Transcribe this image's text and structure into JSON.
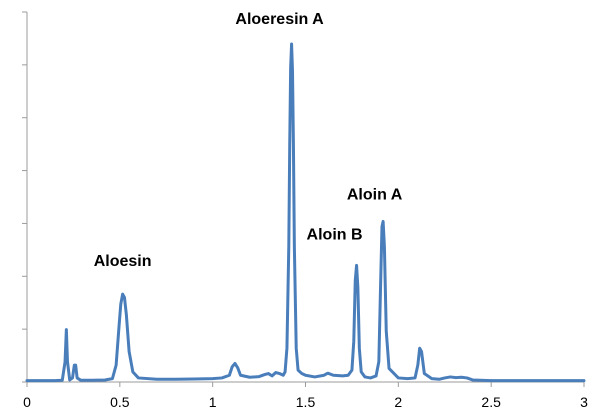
{
  "chart_data": {
    "type": "line",
    "title": "",
    "xlabel": "",
    "ylabel": "",
    "xlim": [
      0,
      3
    ],
    "ylim": [
      0,
      1
    ],
    "grid": false,
    "legend": "none",
    "line_color": "#4a7ebb",
    "x_ticks": [
      "0",
      "0.5",
      "1",
      "1.5",
      "2",
      "2.5",
      "3"
    ],
    "y_tick_count": 7,
    "peaks": [
      {
        "name": "Aloesin",
        "x": 0.515,
        "y": 0.26
      },
      {
        "name": "Aloeresin A",
        "x": 1.425,
        "y": 1.0
      },
      {
        "name": "Aloin B",
        "x": 1.775,
        "y": 0.345
      },
      {
        "name": "Aloin A",
        "x": 1.915,
        "y": 0.475
      }
    ],
    "series": [
      {
        "x": [
          0,
          0.05,
          0.1,
          0.15,
          0.19,
          0.205,
          0.212,
          0.218,
          0.23,
          0.245,
          0.255,
          0.262,
          0.27,
          0.29,
          0.35,
          0.42,
          0.46,
          0.48,
          0.495,
          0.505,
          0.515,
          0.525,
          0.535,
          0.55,
          0.57,
          0.6,
          0.7,
          0.8,
          0.9,
          1.0,
          1.05,
          1.09,
          1.105,
          1.12,
          1.135,
          1.15,
          1.2,
          1.25,
          1.28,
          1.3,
          1.32,
          1.34,
          1.36,
          1.38,
          1.39,
          1.4,
          1.41,
          1.415,
          1.42,
          1.425,
          1.43,
          1.435,
          1.44,
          1.45,
          1.46,
          1.48,
          1.5,
          1.55,
          1.6,
          1.62,
          1.65,
          1.7,
          1.73,
          1.75,
          1.76,
          1.768,
          1.775,
          1.782,
          1.79,
          1.8,
          1.82,
          1.85,
          1.88,
          1.895,
          1.905,
          1.912,
          1.918,
          1.925,
          1.935,
          1.95,
          2.0,
          2.05,
          2.09,
          2.105,
          2.115,
          2.125,
          2.14,
          2.18,
          2.22,
          2.25,
          2.28,
          2.31,
          2.34,
          2.37,
          2.4,
          2.5,
          2.6,
          2.7,
          2.8,
          2.9,
          3.0
        ],
        "y": [
          0.004,
          0.004,
          0.004,
          0.004,
          0.005,
          0.06,
          0.155,
          0.06,
          0.006,
          0.012,
          0.05,
          0.05,
          0.012,
          0.005,
          0.005,
          0.006,
          0.01,
          0.05,
          0.16,
          0.23,
          0.26,
          0.25,
          0.2,
          0.09,
          0.03,
          0.012,
          0.008,
          0.008,
          0.009,
          0.01,
          0.012,
          0.02,
          0.045,
          0.055,
          0.042,
          0.02,
          0.014,
          0.016,
          0.022,
          0.025,
          0.018,
          0.028,
          0.025,
          0.02,
          0.03,
          0.1,
          0.4,
          0.7,
          0.93,
          1.0,
          0.92,
          0.7,
          0.4,
          0.1,
          0.035,
          0.025,
          0.02,
          0.015,
          0.02,
          0.026,
          0.02,
          0.018,
          0.02,
          0.035,
          0.12,
          0.3,
          0.345,
          0.28,
          0.1,
          0.03,
          0.015,
          0.012,
          0.018,
          0.06,
          0.3,
          0.46,
          0.475,
          0.4,
          0.15,
          0.04,
          0.012,
          0.01,
          0.012,
          0.05,
          0.1,
          0.09,
          0.025,
          0.01,
          0.008,
          0.012,
          0.015,
          0.013,
          0.014,
          0.012,
          0.006,
          0.004,
          0.004,
          0.004,
          0.004,
          0.004,
          0.004
        ]
      }
    ]
  }
}
